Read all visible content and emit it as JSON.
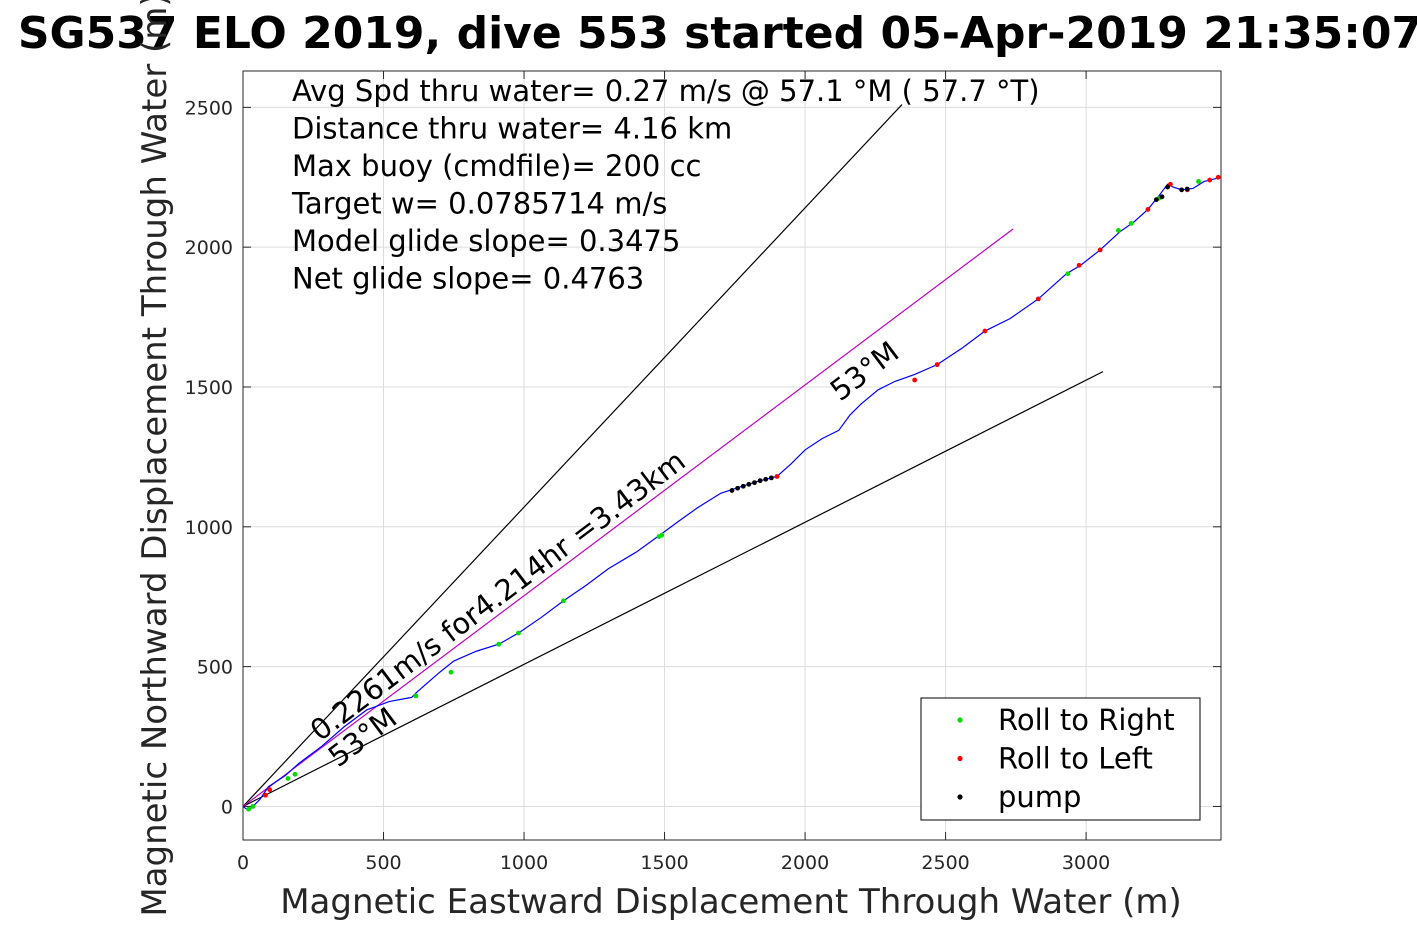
{
  "chart_data": {
    "type": "line",
    "title": "SG537 ELO 2019, dive 553 started 05-Apr-2019 21:35:07",
    "xlabel": "Magnetic Eastward Displacement Through Water (m)",
    "ylabel": "Magnetic Northward Displacement Through Water (m)",
    "xlim": [
      0,
      3480
    ],
    "ylim": [
      -120,
      2630
    ],
    "xticks": [
      0,
      500,
      1000,
      1500,
      2000,
      2500,
      3000
    ],
    "yticks": [
      0,
      500,
      1000,
      1500,
      2000,
      2500
    ],
    "grid": true,
    "legend_placement": "bottom-right",
    "notes": [
      "Avg Spd thru water=  0.27 m/s @  57.1 °M ( 57.7 °T)",
      "Distance thru water=  4.16 km",
      "Max buoy (cmdfile)= 200 cc",
      "Target w= 0.0785714 m/s",
      "Model glide slope= 0.3475",
      "Net glide slope= 0.4763"
    ],
    "annotations": {
      "speed_line": "0.2261m/s for4.214hr =3.43km",
      "heading_upper": "53°M",
      "heading_lower": "53°M"
    },
    "reference_lines": [
      {
        "name": "upper bound",
        "color": "#000000",
        "x": [
          0,
          2345
        ],
        "y": [
          0,
          2510
        ]
      },
      {
        "name": "lower bound",
        "color": "#000000",
        "x": [
          0,
          3060
        ],
        "y": [
          0,
          1555
        ]
      },
      {
        "name": "speed line",
        "color": "#c000c0",
        "x": [
          0,
          2740
        ],
        "y": [
          0,
          2065
        ]
      }
    ],
    "series": [
      {
        "color": "#0000ff",
        "x": [
          0,
          20,
          60,
          90,
          150,
          200,
          280,
          360,
          440,
          520,
          600,
          620,
          700,
          750,
          830,
          910,
          980,
          1060,
          1140,
          1220,
          1300,
          1400,
          1480,
          1550,
          1620,
          1700,
          1760,
          1840,
          1900,
          1950,
          2000,
          2060,
          2120,
          2160,
          2200,
          2260,
          2320,
          2390,
          2470,
          2560,
          2640,
          2730,
          2830,
          2930,
          2980,
          3050,
          3120,
          3170,
          3220,
          3260,
          3290,
          3310,
          3340,
          3380,
          3420,
          3460,
          3480
        ],
        "y": [
          0,
          -15,
          25,
          70,
          110,
          155,
          215,
          285,
          345,
          375,
          390,
          410,
          480,
          520,
          555,
          580,
          620,
          675,
          735,
          790,
          850,
          910,
          968,
          1020,
          1070,
          1120,
          1140,
          1165,
          1180,
          1225,
          1275,
          1315,
          1345,
          1400,
          1440,
          1490,
          1520,
          1545,
          1580,
          1640,
          1700,
          1745,
          1815,
          1905,
          1935,
          1990,
          2055,
          2090,
          2135,
          2185,
          2225,
          2215,
          2205,
          2210,
          2235,
          2245,
          2250
        ]
      }
    ],
    "markers": [
      {
        "name": "Roll to Right",
        "color": "#00dd00",
        "x": [
          20,
          35,
          160,
          185,
          615,
          740,
          910,
          980,
          1140,
          1490,
          1480,
          2935,
          3115,
          3160,
          3260,
          3400
        ],
        "y": [
          -10,
          0,
          100,
          115,
          395,
          480,
          580,
          620,
          735,
          970,
          965,
          1905,
          2060,
          2085,
          2175,
          2235
        ]
      },
      {
        "name": "Roll to Left",
        "color": "#ff0000",
        "x": [
          80,
          95,
          1900,
          2390,
          2470,
          2640,
          2830,
          2975,
          3050,
          3220,
          3300,
          3360,
          3440,
          3470
        ],
        "y": [
          40,
          60,
          1180,
          1525,
          1580,
          1700,
          1815,
          1935,
          1990,
          2135,
          2225,
          2205,
          2240,
          2250
        ]
      },
      {
        "name": "pump",
        "color": "#000000",
        "x": [
          1740,
          1760,
          1780,
          1800,
          1820,
          1840,
          1860,
          1880,
          3250,
          3270,
          3290,
          3340,
          3360
        ],
        "y": [
          1130,
          1138,
          1145,
          1152,
          1158,
          1165,
          1170,
          1175,
          2170,
          2180,
          2215,
          2205,
          2208
        ]
      }
    ],
    "legend": [
      "Roll to Right",
      "Roll to Left",
      "pump"
    ]
  }
}
